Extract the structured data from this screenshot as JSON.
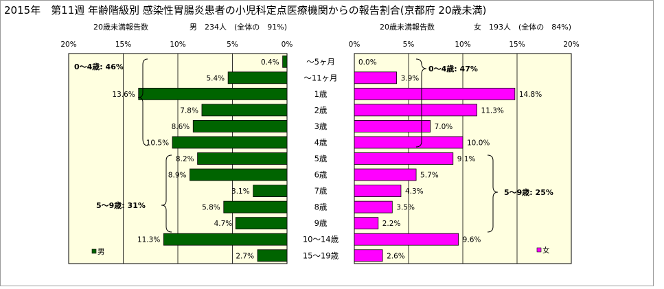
{
  "title": "2015年　第11週 年齢階級別 感染性胃腸炎患者の小児科定点医療機関からの報告割合(京都府 20歳未満)",
  "colors": {
    "male": "#006400",
    "female": "#ff00ff",
    "plot_bg": "#ffffe0",
    "border": "#000000"
  },
  "chart_data": [
    {
      "type": "bar",
      "orientation": "horizontal",
      "direction": "right-to-left",
      "subtitle_left": "20歳未満報告数",
      "subtitle_right": "男　234人　(全体の　91%)",
      "categories": [
        "～5ヶ月",
        "～11ヶ月",
        "1歳",
        "2歳",
        "3歳",
        "4歳",
        "5歳",
        "6歳",
        "7歳",
        "8歳",
        "9歳",
        "10～14歳",
        "15～19歳"
      ],
      "values": [
        0.4,
        5.4,
        13.6,
        7.8,
        8.6,
        10.5,
        8.2,
        8.9,
        3.1,
        5.8,
        4.7,
        11.3,
        2.7
      ],
      "value_labels": [
        "0.4%",
        "5.4%",
        "13.6%",
        "7.8%",
        "8.6%",
        "10.5%",
        "8.2%",
        "8.9%",
        "3.1%",
        "5.8%",
        "4.7%",
        "11.3%",
        "2.7%"
      ],
      "xlim": [
        0,
        20
      ],
      "ticks": [
        "20%",
        "15%",
        "10%",
        "5%",
        "0%"
      ],
      "legend": "男",
      "annotations": [
        "0～4歳: 46%",
        "5～9歳: 31%"
      ]
    },
    {
      "type": "bar",
      "orientation": "horizontal",
      "direction": "left-to-right",
      "subtitle_left": "20歳未満報告数",
      "subtitle_right": "女　193人　(全体の　84%)",
      "categories": [
        "～5ヶ月",
        "～11ヶ月",
        "1歳",
        "2歳",
        "3歳",
        "4歳",
        "5歳",
        "6歳",
        "7歳",
        "8歳",
        "9歳",
        "10～14歳",
        "15～19歳"
      ],
      "values": [
        0.0,
        3.9,
        14.8,
        11.3,
        7.0,
        10.0,
        9.1,
        5.7,
        4.3,
        3.5,
        2.2,
        9.6,
        2.6
      ],
      "value_labels": [
        "0.0%",
        "3.9%",
        "14.8%",
        "11.3%",
        "7.0%",
        "10.0%",
        "9.1%",
        "5.7%",
        "4.3%",
        "3.5%",
        "2.2%",
        "9.6%",
        "2.6%"
      ],
      "xlim": [
        0,
        20
      ],
      "ticks": [
        "0%",
        "5%",
        "10%",
        "15%",
        "20%"
      ],
      "legend": "女",
      "annotations": [
        "0～4歳: 47%",
        "5～9歳: 25%"
      ]
    }
  ]
}
